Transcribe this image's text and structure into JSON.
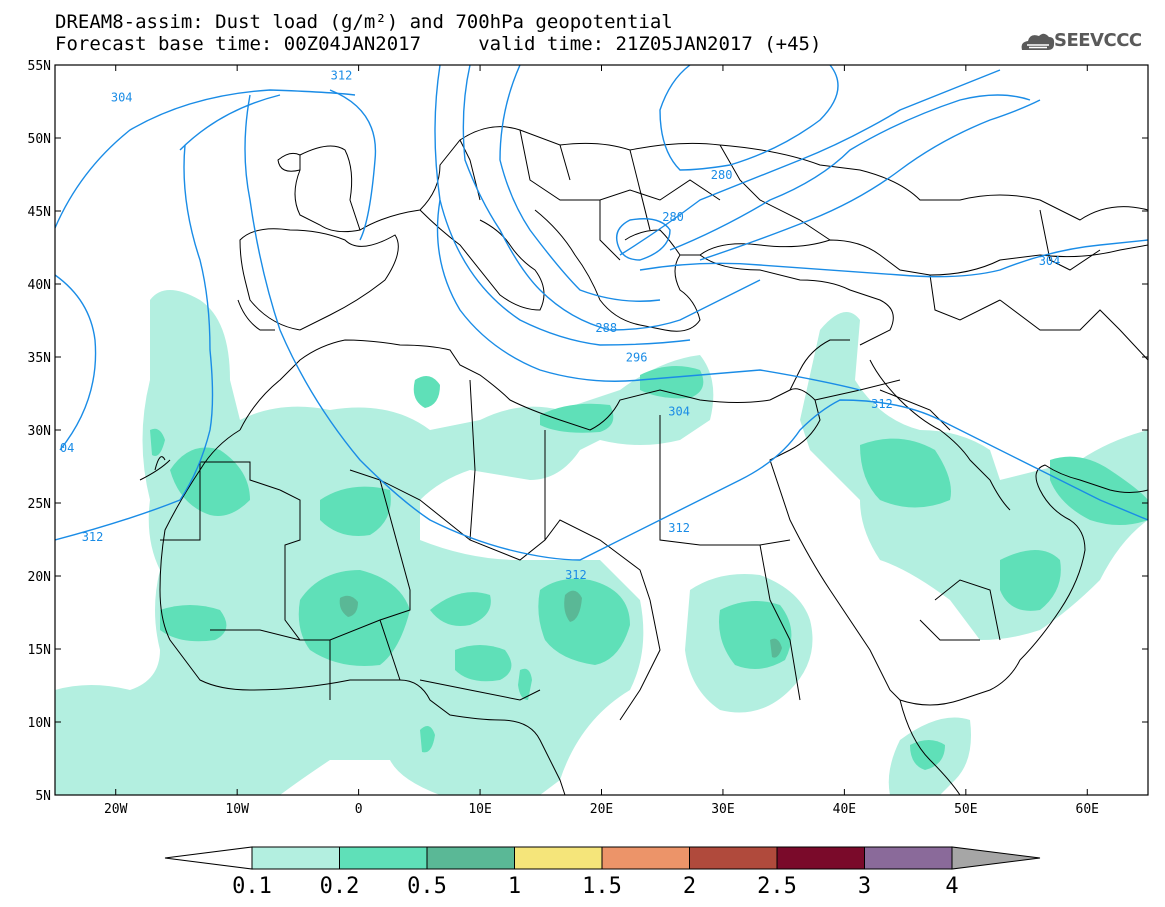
{
  "header": {
    "title_line1": "DREAM8-assim: Dust load (g/m²) and 700hPa geopotential",
    "title_line2": "Forecast base time: 00Z04JAN2017     valid time: 21Z05JAN2017 (+45)",
    "logo_text": "SEEVCCC",
    "logo_icon": "cloud-icon"
  },
  "map": {
    "lat_labels": [
      "55N",
      "50N",
      "45N",
      "40N",
      "35N",
      "30N",
      "25N",
      "20N",
      "15N",
      "10N",
      "5N"
    ],
    "lon_labels": [
      "20W",
      "10W",
      "0",
      "10E",
      "20E",
      "30E",
      "40E",
      "50E",
      "60E"
    ],
    "lat_range": [
      5,
      55
    ],
    "lon_range": [
      -25,
      65
    ],
    "coastline_color": "#000000",
    "contour_color": "#1a8ce6",
    "contour_labels": [
      {
        "text": "304",
        "lon": -20.4,
        "lat": 52.5
      },
      {
        "text": "312",
        "lon": -2.3,
        "lat": 54.0
      },
      {
        "text": "280",
        "lon": 29.0,
        "lat": 47.2
      },
      {
        "text": "280",
        "lon": 25.0,
        "lat": 44.3
      },
      {
        "text": "304",
        "lon": 56.0,
        "lat": 41.3
      },
      {
        "text": "288",
        "lon": 19.5,
        "lat": 36.7
      },
      {
        "text": "296",
        "lon": 22.0,
        "lat": 34.7
      },
      {
        "text": "304",
        "lon": 25.5,
        "lat": 31.0
      },
      {
        "text": "312",
        "lon": 42.2,
        "lat": 31.5
      },
      {
        "text": "04",
        "lon": -24.6,
        "lat": 28.5
      },
      {
        "text": "312",
        "lon": -22.8,
        "lat": 22.4
      },
      {
        "text": "312",
        "lon": 25.5,
        "lat": 23.0
      },
      {
        "text": "312",
        "lon": 17.0,
        "lat": 19.8
      }
    ]
  },
  "colorbar": {
    "labels": [
      "0.1",
      "0.2",
      "0.5",
      "1",
      "1.5",
      "2",
      "2.5",
      "3",
      "4"
    ],
    "colors": [
      "#b3efe0",
      "#5fe0b8",
      "#5ab896",
      "#f5e57a",
      "#ec9469",
      "#b04a3c",
      "#7a0a2a",
      "#8a6a9a"
    ],
    "under_color": "#ffffff",
    "over_color": "#a6a6a6"
  }
}
